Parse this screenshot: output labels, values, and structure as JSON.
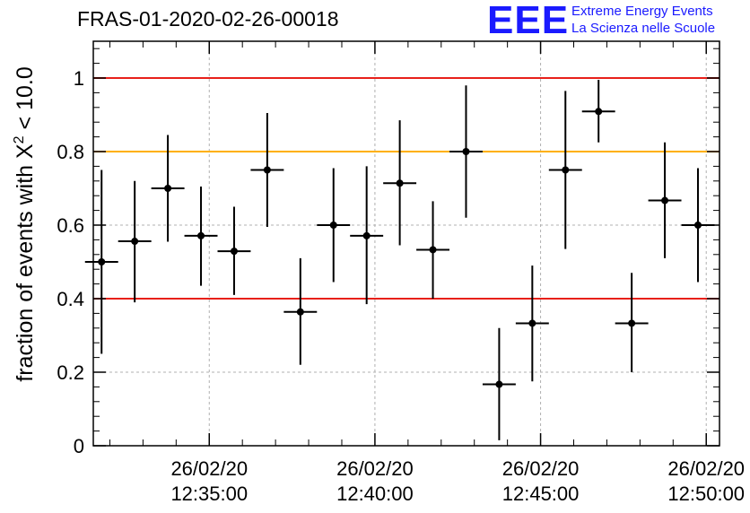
{
  "header": {
    "title": "FRAS-01-2020-02-26-00018",
    "logo_letters": "EEE",
    "logo_line1": "Extreme Energy Events",
    "logo_line2": "La Scienza nelle Scuole"
  },
  "colors": {
    "limit_red": "#e8201a",
    "limit_orange": "#ffb000",
    "marker": "#000000",
    "grid": "#b0b0b0",
    "logo_blue": "#1a1aff"
  },
  "chart_data": {
    "type": "scatter",
    "title": "FRAS-01-2020-02-26-00018",
    "xlabel": "",
    "ylabel_prefix": "fraction of events with ",
    "ylabel_symbol": "X",
    "ylabel_sup": "2",
    "ylabel_suffix": " < 10.0",
    "x_time_unit": "minutes after 12:30:00 on 26/02/20",
    "xlim": [
      1.5,
      20.4
    ],
    "ylim": [
      0,
      1.1
    ],
    "x_ticks": [
      {
        "x": 5,
        "date": "26/02/20",
        "time": "12:35:00"
      },
      {
        "x": 10,
        "date": "26/02/20",
        "time": "12:40:00"
      },
      {
        "x": 15,
        "date": "26/02/20",
        "time": "12:45:00"
      },
      {
        "x": 20,
        "date": "26/02/20",
        "time": "12:50:00"
      }
    ],
    "y_ticks": [
      {
        "value": 0,
        "label": "0"
      },
      {
        "value": 0.2,
        "label": "0.2"
      },
      {
        "value": 0.4,
        "label": "0.4"
      },
      {
        "value": 0.6,
        "label": "0.6"
      },
      {
        "value": 0.8,
        "label": "0.8"
      },
      {
        "value": 1,
        "label": "1"
      }
    ],
    "grid": true,
    "reference_lines": [
      {
        "y": 1.0,
        "color": "red"
      },
      {
        "y": 0.8,
        "color": "orange"
      },
      {
        "y": 0.4,
        "color": "red"
      }
    ],
    "points": [
      {
        "x": 1.75,
        "y": 0.5,
        "err_low": 0.25,
        "err_high": 0.75
      },
      {
        "x": 2.75,
        "y": 0.556,
        "err_low": 0.39,
        "err_high": 0.72
      },
      {
        "x": 3.75,
        "y": 0.7,
        "err_low": 0.555,
        "err_high": 0.845
      },
      {
        "x": 4.75,
        "y": 0.571,
        "err_low": 0.435,
        "err_high": 0.705
      },
      {
        "x": 5.75,
        "y": 0.529,
        "err_low": 0.41,
        "err_high": 0.65
      },
      {
        "x": 6.75,
        "y": 0.75,
        "err_low": 0.595,
        "err_high": 0.905
      },
      {
        "x": 7.75,
        "y": 0.364,
        "err_low": 0.22,
        "err_high": 0.51
      },
      {
        "x": 8.75,
        "y": 0.6,
        "err_low": 0.445,
        "err_high": 0.755
      },
      {
        "x": 9.75,
        "y": 0.571,
        "err_low": 0.385,
        "err_high": 0.76
      },
      {
        "x": 10.75,
        "y": 0.714,
        "err_low": 0.545,
        "err_high": 0.885
      },
      {
        "x": 11.75,
        "y": 0.533,
        "err_low": 0.4,
        "err_high": 0.665
      },
      {
        "x": 12.75,
        "y": 0.8,
        "err_low": 0.62,
        "err_high": 0.98
      },
      {
        "x": 13.75,
        "y": 0.167,
        "err_low": 0.015,
        "err_high": 0.32
      },
      {
        "x": 14.75,
        "y": 0.333,
        "err_low": 0.175,
        "err_high": 0.49
      },
      {
        "x": 15.75,
        "y": 0.75,
        "err_low": 0.535,
        "err_high": 0.965
      },
      {
        "x": 16.75,
        "y": 0.909,
        "err_low": 0.825,
        "err_high": 0.995
      },
      {
        "x": 17.75,
        "y": 0.333,
        "err_low": 0.2,
        "err_high": 0.47
      },
      {
        "x": 18.75,
        "y": 0.667,
        "err_low": 0.51,
        "err_high": 0.825
      },
      {
        "x": 19.75,
        "y": 0.6,
        "err_low": 0.445,
        "err_high": 0.755
      }
    ],
    "x_half_width": 0.5
  }
}
